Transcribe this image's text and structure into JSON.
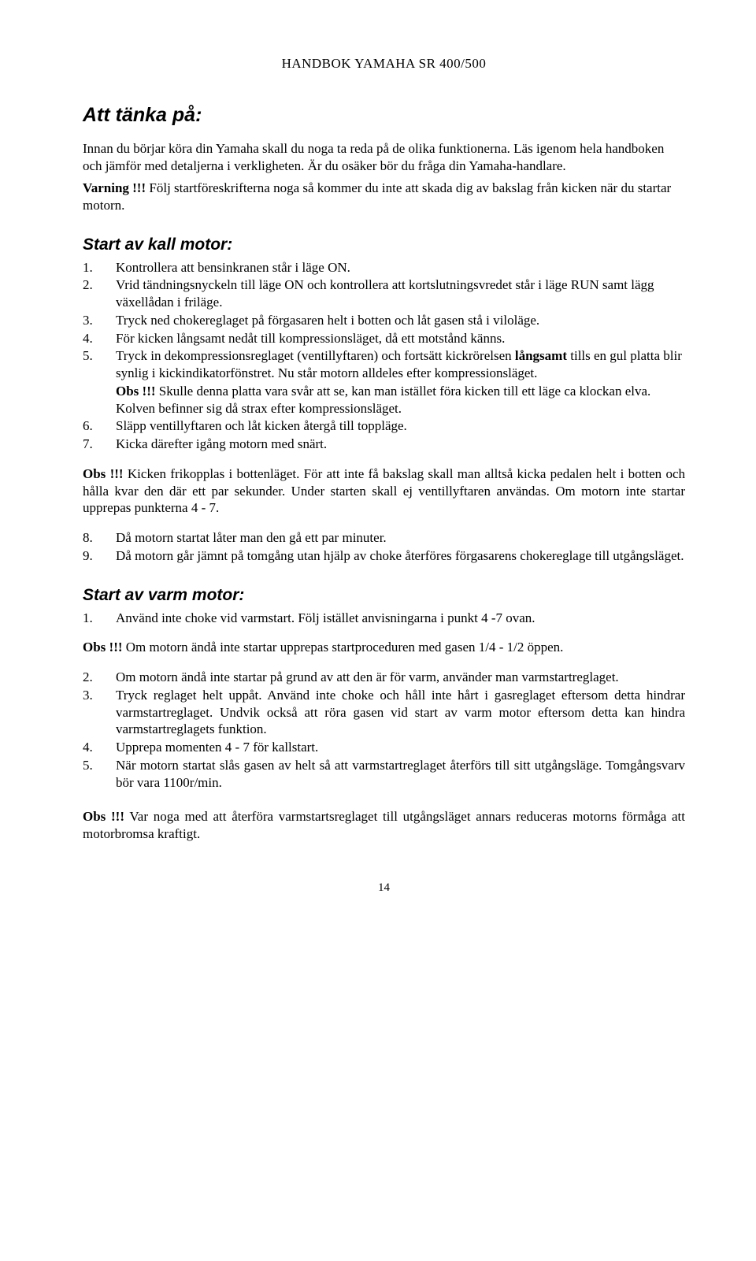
{
  "header": "HANDBOK YAMAHA SR 400/500",
  "h_main": "Att tänka på:",
  "intro": "Innan du börjar köra din Yamaha skall du noga ta reda på de olika funktionerna. Läs igenom hela handboken och jämför med detaljerna i verkligheten. Är du osäker bör du fråga din Yamaha-handlare.",
  "warn_label": "Varning !!!",
  "warn_text": " Följ startföreskrifterna noga så kommer du inte att skada dig av bakslag från kicken när du startar motorn.",
  "h_cold": "Start av kall motor:",
  "cold_list": [
    {
      "n": "1.",
      "t": "Kontrollera att bensinkranen står i läge ON."
    },
    {
      "n": "2.",
      "t": "Vrid tändningsnyckeln till läge ON och kontrollera att kortslutningsvredet står i läge RUN samt lägg växellådan i friläge."
    },
    {
      "n": "3.",
      "t": "Tryck ned chokereglaget på förgasaren helt i botten och låt gasen stå i viloläge."
    },
    {
      "n": "4.",
      "t": "För kicken långsamt nedåt till kompressionsläget, då ett motstånd känns."
    }
  ],
  "cold5_n": "5.",
  "cold5_a": "Tryck in dekompressionsreglaget (ventillyftaren) och fortsätt kickrörelsen ",
  "cold5_b": "långsamt",
  "cold5_c": " tills en gul platta blir synlig i kickindikatorfönstret. Nu står motorn alldeles efter kompressionsläget.",
  "cold5_obs_label": "Obs !!!",
  "cold5_obs_text": " Skulle denna platta vara svår att se, kan man istället föra kicken till ett läge ca klockan elva. Kolven befinner sig då strax efter kompressionsläget.",
  "cold_list2": [
    {
      "n": "6.",
      "t": "Släpp ventillyftaren och låt kicken återgå till toppläge."
    },
    {
      "n": "7.",
      "t": "Kicka därefter igång motorn med snärt."
    }
  ],
  "obs2_label": "Obs !!!",
  "obs2_text": " Kicken frikopplas i bottenläget. För att inte få bakslag skall man alltså kicka pedalen helt i botten och hålla kvar den där ett par sekunder. Under starten skall ej ventillyftaren användas. Om motorn inte startar upprepas punkterna 4 - 7.",
  "cold_list3": [
    {
      "n": "8.",
      "t": "Då motorn startat låter man den gå ett par minuter."
    },
    {
      "n": "9.",
      "t": "Då motorn går jämnt på tomgång utan hjälp av choke återföres förgasarens chokereglage till utgångsläget.",
      "j": true
    }
  ],
  "h_warm": "Start av varm motor:",
  "warm1_n": "1.",
  "warm1_t": "Använd inte choke vid varmstart. Följ istället anvisningarna i punkt 4 -7 ovan.",
  "obs3_label": "Obs !!!",
  "obs3_text": " Om motorn ändå inte startar upprepas startproceduren med gasen 1/4 - 1/2 öppen.",
  "warm_list2": [
    {
      "n": "2.",
      "t": "Om motorn ändå inte startar på grund av att den är för varm, använder man varmstartreglaget.",
      "j": true
    },
    {
      "n": "3.",
      "t": "Tryck reglaget helt uppåt. Använd inte choke och håll inte hårt i gasreglaget eftersom detta hindrar varmstartreglaget. Undvik också att röra gasen vid start av varm motor eftersom detta kan hindra varmstartreglagets funktion.",
      "j": true
    },
    {
      "n": "4.",
      "t": "Upprepa momenten 4 - 7 för kallstart."
    },
    {
      "n": "5.",
      "t": "När motorn startat slås gasen av helt så att varmstartreglaget återförs till sitt utgångsläge. Tomgångsvarv bör vara 1100r/min.",
      "j": true
    }
  ],
  "obs4_label": "Obs !!!",
  "obs4_text": " Var noga med att återföra varmstartsreglaget till utgångsläget annars reduceras motorns förmåga att motorbromsa kraftigt.",
  "page_number": "14"
}
